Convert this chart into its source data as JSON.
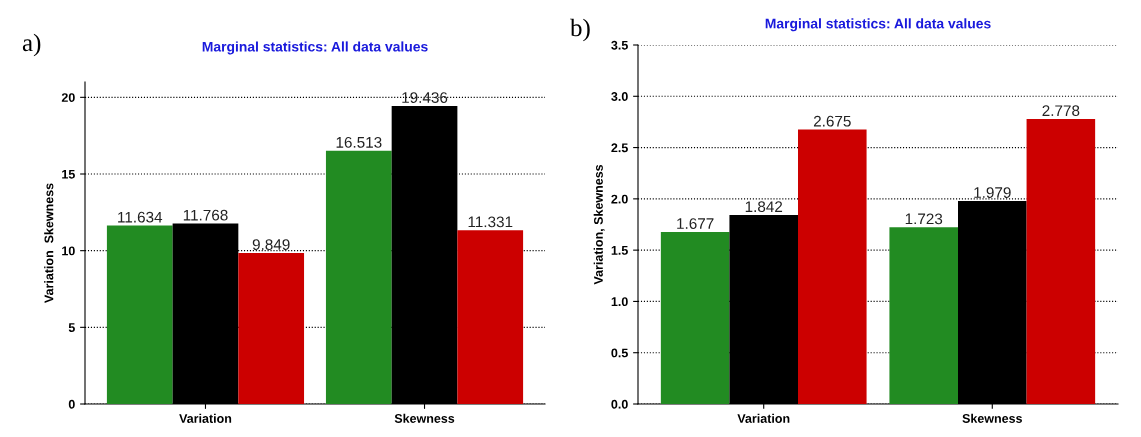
{
  "chart_data": [
    {
      "type": "bar",
      "title": "Marginal statistics: All data values",
      "ylabel": "Variation  Skewness",
      "categories": [
        "Variation",
        "Skewness"
      ],
      "series": [
        {
          "color": "#228b22",
          "values": [
            11.634,
            16.513
          ]
        },
        {
          "color": "#000000",
          "values": [
            11.768,
            19.436
          ]
        },
        {
          "color": "#cc0000",
          "values": [
            9.849,
            11.331
          ]
        }
      ],
      "ylim": [
        0,
        21
      ],
      "yticks": [
        0,
        5,
        10,
        15,
        20
      ],
      "grid": "y",
      "data_labels": true,
      "legend": false,
      "annotations": [
        "a)"
      ]
    },
    {
      "type": "bar",
      "title": "Marginal statistics: All data values",
      "ylabel": "Variation, Skewness",
      "categories": [
        "Variation",
        "Skewness"
      ],
      "series": [
        {
          "color": "#228b22",
          "values": [
            1.677,
            1.723
          ]
        },
        {
          "color": "#000000",
          "values": [
            1.842,
            1.979
          ]
        },
        {
          "color": "#cc0000",
          "values": [
            2.675,
            2.778
          ]
        }
      ],
      "ylim": [
        0,
        3.5
      ],
      "yticks": [
        {
          "value": 0,
          "label": "0.0"
        },
        0.5,
        {
          "value": 1,
          "label": "1.0"
        },
        1.5,
        {
          "value": 2,
          "label": "2.0"
        },
        2.5,
        {
          "value": 3,
          "label": "3.0"
        },
        3.5
      ],
      "grid": "y",
      "data_labels": true,
      "legend": false,
      "annotations": [
        "b)"
      ]
    }
  ]
}
